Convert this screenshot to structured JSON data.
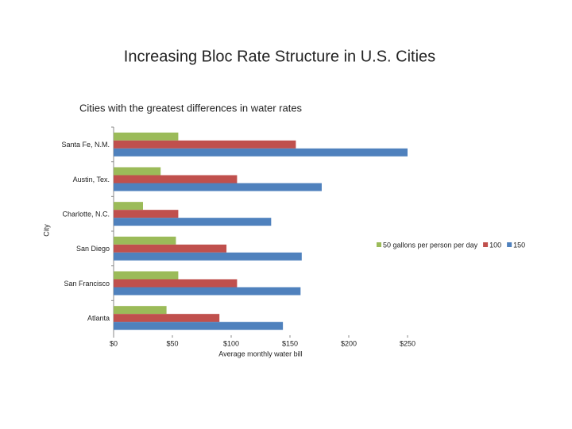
{
  "chart_data": {
    "type": "hbar",
    "title": "Increasing Bloc Rate Structure in U.S. Cities",
    "subtitle": "Cities with the greatest differences in water rates",
    "x_label": "Average monthly water bill",
    "y_label": "City",
    "categories": [
      "Santa Fe, N.M.",
      "Austin, Tex.",
      "Charlotte, N.C.",
      "San Diego",
      "San Francisco",
      "Atlanta"
    ],
    "series": [
      {
        "name": "50 gallons per person per day",
        "color": "#9bbb59",
        "values": [
          55,
          40,
          25,
          53,
          55,
          45
        ]
      },
      {
        "name": "100",
        "color": "#c0504d",
        "values": [
          155,
          105,
          55,
          96,
          105,
          90
        ]
      },
      {
        "name": "150",
        "color": "#4f81bd",
        "values": [
          250,
          177,
          134,
          160,
          159,
          144
        ]
      }
    ],
    "xlim": [
      0,
      250
    ],
    "xticks": [
      {
        "value": 0,
        "label": "$0"
      },
      {
        "value": 50,
        "label": "$50"
      },
      {
        "value": 100,
        "label": "$100"
      },
      {
        "value": 150,
        "label": "$150"
      },
      {
        "value": 200,
        "label": "$200"
      },
      {
        "value": 250,
        "label": "$250"
      }
    ],
    "grid": false,
    "legend": "right"
  }
}
